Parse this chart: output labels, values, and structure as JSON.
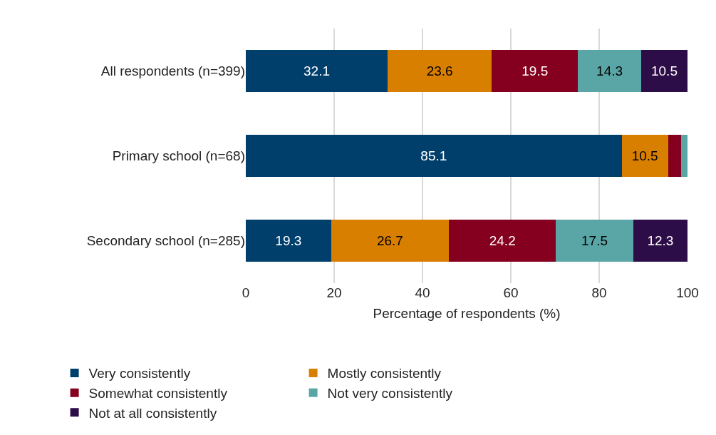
{
  "chart_data": {
    "type": "bar",
    "orientation": "horizontal",
    "stacked": true,
    "xlabel": "Percentage of respondents (%)",
    "categories": [
      "All respondents (n=399)",
      "Primary school (n=68)",
      "Secondary school (n=285)"
    ],
    "series": [
      {
        "name": "Very consistently",
        "color": "#003f6b",
        "values": [
          32.1,
          85.1,
          19.3
        ],
        "value_labels": [
          "32.1",
          "85.1",
          "19.3"
        ]
      },
      {
        "name": "Mostly consistently",
        "color": "#d97f00",
        "values": [
          23.6,
          10.5,
          26.7
        ],
        "value_labels": [
          "23.6",
          "10.5",
          "26.7"
        ]
      },
      {
        "name": "Somewhat consistently",
        "color": "#85001e",
        "values": [
          19.5,
          3.0,
          24.2
        ],
        "value_labels": [
          "19.5",
          null,
          "24.2"
        ]
      },
      {
        "name": "Not very consistently",
        "color": "#5aa6a6",
        "values": [
          14.3,
          1.4,
          17.5
        ],
        "value_labels": [
          "14.3",
          null,
          "17.5"
        ]
      },
      {
        "name": "Not at all consistently",
        "color": "#2d0d47",
        "values": [
          10.5,
          null,
          12.3
        ],
        "value_labels": [
          "10.5",
          null,
          "12.3"
        ]
      }
    ],
    "xlim": [
      0,
      100
    ],
    "xticks": [
      0,
      20,
      40,
      60,
      80,
      100
    ],
    "grid": "x",
    "legend": "bottom"
  }
}
